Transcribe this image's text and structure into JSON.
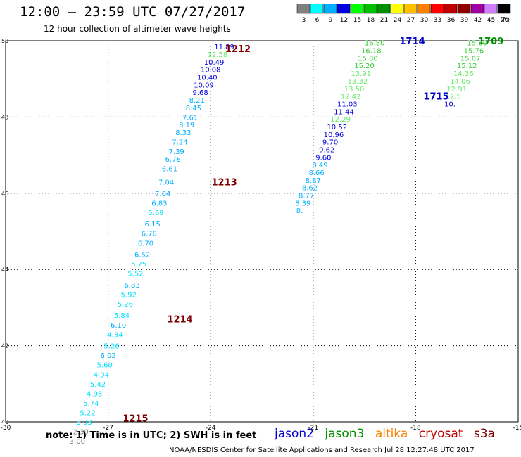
{
  "header": {
    "title": "12:00 — 23:59 UTC 07/27/2017",
    "subtitle": "12 hour collection of altimeter wave heights"
  },
  "legend": {
    "unit": "(ft)",
    "bins": [
      {
        "label": "3",
        "color": "#808080"
      },
      {
        "label": "6",
        "color": "#00ffff"
      },
      {
        "label": "9",
        "color": "#00b0ff"
      },
      {
        "label": "12",
        "color": "#0000e0"
      },
      {
        "label": "15",
        "color": "#00ff00"
      },
      {
        "label": "18",
        "color": "#00c000"
      },
      {
        "label": "21",
        "color": "#009000"
      },
      {
        "label": "24",
        "color": "#ffff00"
      },
      {
        "label": "27",
        "color": "#ffc000"
      },
      {
        "label": "30",
        "color": "#ff8000"
      },
      {
        "label": "33",
        "color": "#ff0000"
      },
      {
        "label": "36",
        "color": "#c00000"
      },
      {
        "label": "39",
        "color": "#900000"
      },
      {
        "label": "42",
        "color": "#a000a0"
      },
      {
        "label": "45",
        "color": "#d080ff"
      },
      {
        "label": "70",
        "color": "#000000"
      }
    ]
  },
  "note": "note: 1) Time is in UTC; 2) SWH is in feet",
  "satellites": [
    {
      "name": "jason2",
      "color": "#0000d0"
    },
    {
      "name": "jason3",
      "color": "#009000"
    },
    {
      "name": "altika",
      "color": "#ff8000"
    },
    {
      "name": "cryosat",
      "color": "#c00000"
    },
    {
      "name": "s3a",
      "color": "#800000"
    }
  ],
  "credit": "NOAA/NESDIS Center for Satellite Applications and Research    Jul 28 12:27:48 UTC 2017",
  "chart_data": {
    "type": "scatter",
    "xlim": [
      -30,
      -15
    ],
    "ylim": [
      40,
      50
    ],
    "xticks": [
      "-30",
      "-27",
      "-24",
      "-21",
      "-18",
      "-15"
    ],
    "yticks": [
      "40",
      "42",
      "44",
      "46",
      "48",
      "50"
    ],
    "grid": true,
    "time_labels": [
      {
        "text": "1212",
        "lon": -23.2,
        "lat": 49.8,
        "color": "#800000"
      },
      {
        "text": "1213",
        "lon": -23.6,
        "lat": 46.3,
        "color": "#800000"
      },
      {
        "text": "1214",
        "lon": -24.9,
        "lat": 42.7,
        "color": "#800000"
      },
      {
        "text": "1215",
        "lon": -26.2,
        "lat": 40.1,
        "color": "#800000"
      },
      {
        "text": "1714",
        "lon": -18.1,
        "lat": 50.0,
        "color": "#0000d0"
      },
      {
        "text": "1709",
        "lon": -15.8,
        "lat": 50.0,
        "color": "#009000"
      },
      {
        "text": "1715",
        "lon": -17.4,
        "lat": 48.55,
        "color": "#0000d0"
      }
    ],
    "series": [
      {
        "name": "cryosat",
        "points": [
          {
            "lon": -23.6,
            "lat": 49.85,
            "v": "11.89",
            "c": "#0000e0"
          },
          {
            "lon": -23.8,
            "lat": 49.65,
            "v": "12.58",
            "c": "#66ee66"
          },
          {
            "lon": -23.9,
            "lat": 49.45,
            "v": "10.49",
            "c": "#0000e0"
          },
          {
            "lon": -24.0,
            "lat": 49.25,
            "v": "10.08",
            "c": "#0000e0"
          },
          {
            "lon": -24.1,
            "lat": 49.05,
            "v": "10.40",
            "c": "#0000e0"
          },
          {
            "lon": -24.2,
            "lat": 48.85,
            "v": "10.09",
            "c": "#0000e0"
          },
          {
            "lon": -24.3,
            "lat": 48.65,
            "v": "9.68",
            "c": "#0000e0"
          },
          {
            "lon": -24.4,
            "lat": 48.45,
            "v": "8.21",
            "c": "#00b0ff"
          },
          {
            "lon": -24.5,
            "lat": 48.25,
            "v": "8.45",
            "c": "#00b0ff"
          },
          {
            "lon": -24.6,
            "lat": 48.0,
            "v": "7.61",
            "c": "#00b0ff"
          },
          {
            "lon": -24.7,
            "lat": 47.8,
            "v": "8.19",
            "c": "#00b0ff"
          },
          {
            "lon": -24.8,
            "lat": 47.6,
            "v": "8.33",
            "c": "#00b0ff"
          },
          {
            "lon": -24.9,
            "lat": 47.35,
            "v": "7.24",
            "c": "#00b0ff"
          },
          {
            "lon": -25.0,
            "lat": 47.1,
            "v": "7.39",
            "c": "#00b0ff"
          },
          {
            "lon": -25.1,
            "lat": 46.9,
            "v": "6.78",
            "c": "#00b0ff"
          },
          {
            "lon": -25.2,
            "lat": 46.65,
            "v": "6.61",
            "c": "#00b0ff"
          },
          {
            "lon": -25.3,
            "lat": 46.3,
            "v": "7.04",
            "c": "#00b0ff"
          },
          {
            "lon": -25.4,
            "lat": 46.0,
            "v": "7.04",
            "c": "#00b0ff"
          },
          {
            "lon": -25.5,
            "lat": 45.75,
            "v": "6.83",
            "c": "#00b0ff"
          },
          {
            "lon": -25.6,
            "lat": 45.5,
            "v": "5.69",
            "c": "#00e0ff"
          },
          {
            "lon": -25.7,
            "lat": 45.2,
            "v": "6.15",
            "c": "#00b0ff"
          },
          {
            "lon": -25.8,
            "lat": 44.95,
            "v": "6.78",
            "c": "#00b0ff"
          },
          {
            "lon": -25.9,
            "lat": 44.7,
            "v": "6.70",
            "c": "#00b0ff"
          },
          {
            "lon": -26.0,
            "lat": 44.4,
            "v": "6.52",
            "c": "#00b0ff"
          },
          {
            "lon": -26.1,
            "lat": 44.15,
            "v": "5.75",
            "c": "#00e0ff"
          },
          {
            "lon": -26.2,
            "lat": 43.9,
            "v": "5.52",
            "c": "#00e0ff"
          },
          {
            "lon": -26.3,
            "lat": 43.6,
            "v": "6.83",
            "c": "#00b0ff"
          },
          {
            "lon": -26.4,
            "lat": 43.35,
            "v": "5.92",
            "c": "#00e0ff"
          },
          {
            "lon": -26.5,
            "lat": 43.1,
            "v": "5.26",
            "c": "#00e0ff"
          },
          {
            "lon": -26.6,
            "lat": 42.8,
            "v": "5.84",
            "c": "#00e0ff"
          },
          {
            "lon": -26.7,
            "lat": 42.55,
            "v": "6.10",
            "c": "#00b0ff"
          },
          {
            "lon": -26.8,
            "lat": 42.3,
            "v": "4.34",
            "c": "#00e0ff"
          },
          {
            "lon": -26.9,
            "lat": 42.0,
            "v": "5.26",
            "c": "#00e0ff"
          },
          {
            "lon": -27.0,
            "lat": 41.75,
            "v": "6.02",
            "c": "#00b0ff"
          },
          {
            "lon": -27.1,
            "lat": 41.5,
            "v": "5.60",
            "c": "#00e0ff"
          },
          {
            "lon": -27.2,
            "lat": 41.25,
            "v": "4.94",
            "c": "#00e0ff"
          },
          {
            "lon": -27.3,
            "lat": 41.0,
            "v": "5.42",
            "c": "#00e0ff"
          },
          {
            "lon": -27.4,
            "lat": 40.75,
            "v": "4.93",
            "c": "#00e0ff"
          },
          {
            "lon": -27.5,
            "lat": 40.5,
            "v": "5.74",
            "c": "#00e0ff"
          },
          {
            "lon": -27.6,
            "lat": 40.25,
            "v": "5.22",
            "c": "#00e0ff"
          },
          {
            "lon": -27.7,
            "lat": 40.0,
            "v": "3.93",
            "c": "#00e0ff"
          },
          {
            "lon": -27.8,
            "lat": 39.75,
            "v": "2.39",
            "c": "#808080"
          },
          {
            "lon": -27.9,
            "lat": 39.5,
            "v": "3.00",
            "c": "#808080"
          }
        ]
      },
      {
        "name": "jason2",
        "points": [
          {
            "lon": -19.2,
            "lat": 49.95,
            "v": "16.80",
            "c": "#33cc33"
          },
          {
            "lon": -19.3,
            "lat": 49.75,
            "v": "16.18",
            "c": "#33cc33"
          },
          {
            "lon": -19.4,
            "lat": 49.55,
            "v": "15.80",
            "c": "#33cc33"
          },
          {
            "lon": -19.5,
            "lat": 49.35,
            "v": "15.20",
            "c": "#33cc33"
          },
          {
            "lon": -19.6,
            "lat": 49.15,
            "v": "13.91",
            "c": "#66ee66"
          },
          {
            "lon": -19.7,
            "lat": 48.95,
            "v": "13.32",
            "c": "#66ee66"
          },
          {
            "lon": -19.8,
            "lat": 48.75,
            "v": "13.50",
            "c": "#66ee66"
          },
          {
            "lon": -19.9,
            "lat": 48.55,
            "v": "12.42",
            "c": "#66ee66"
          },
          {
            "lon": -20.0,
            "lat": 48.35,
            "v": "11.03",
            "c": "#0000e0"
          },
          {
            "lon": -20.1,
            "lat": 48.15,
            "v": "11.44",
            "c": "#0000e0"
          },
          {
            "lon": -20.2,
            "lat": 47.95,
            "v": "12.29",
            "c": "#66ee66"
          },
          {
            "lon": -20.3,
            "lat": 47.75,
            "v": "10.52",
            "c": "#0000e0"
          },
          {
            "lon": -20.4,
            "lat": 47.55,
            "v": "10.96",
            "c": "#0000e0"
          },
          {
            "lon": -20.5,
            "lat": 47.35,
            "v": "9.70",
            "c": "#0000e0"
          },
          {
            "lon": -20.6,
            "lat": 47.15,
            "v": "9.62",
            "c": "#0000e0"
          },
          {
            "lon": -20.7,
            "lat": 46.95,
            "v": "9.60",
            "c": "#0000e0"
          },
          {
            "lon": -20.8,
            "lat": 46.75,
            "v": "8.49",
            "c": "#00b0ff"
          },
          {
            "lon": -20.9,
            "lat": 46.55,
            "v": "8.66",
            "c": "#00b0ff"
          },
          {
            "lon": -21.0,
            "lat": 46.35,
            "v": "8.87",
            "c": "#00b0ff"
          },
          {
            "lon": -21.1,
            "lat": 46.15,
            "v": "8.62",
            "c": "#00b0ff"
          },
          {
            "lon": -21.2,
            "lat": 45.95,
            "v": "8.77",
            "c": "#00b0ff"
          },
          {
            "lon": -21.3,
            "lat": 45.75,
            "v": "8.39",
            "c": "#00b0ff"
          },
          {
            "lon": -21.4,
            "lat": 45.55,
            "v": "8.",
            "c": "#00b0ff"
          }
        ]
      },
      {
        "name": "jason3",
        "points": [
          {
            "lon": -16.2,
            "lat": 49.95,
            "v": "15.89",
            "c": "#33cc33"
          },
          {
            "lon": -16.3,
            "lat": 49.75,
            "v": "15.76",
            "c": "#33cc33"
          },
          {
            "lon": -16.4,
            "lat": 49.55,
            "v": "15.67",
            "c": "#33cc33"
          },
          {
            "lon": -16.5,
            "lat": 49.35,
            "v": "15.12",
            "c": "#33cc33"
          },
          {
            "lon": -16.6,
            "lat": 49.15,
            "v": "14.36",
            "c": "#66ee66"
          },
          {
            "lon": -16.7,
            "lat": 48.95,
            "v": "14.06",
            "c": "#66ee66"
          },
          {
            "lon": -16.8,
            "lat": 48.75,
            "v": "12.91",
            "c": "#66ee66"
          },
          {
            "lon": -16.9,
            "lat": 48.55,
            "v": "12.5",
            "c": "#66ee66"
          },
          {
            "lon": -17.0,
            "lat": 48.35,
            "v": "10.",
            "c": "#0000e0"
          }
        ]
      }
    ]
  }
}
